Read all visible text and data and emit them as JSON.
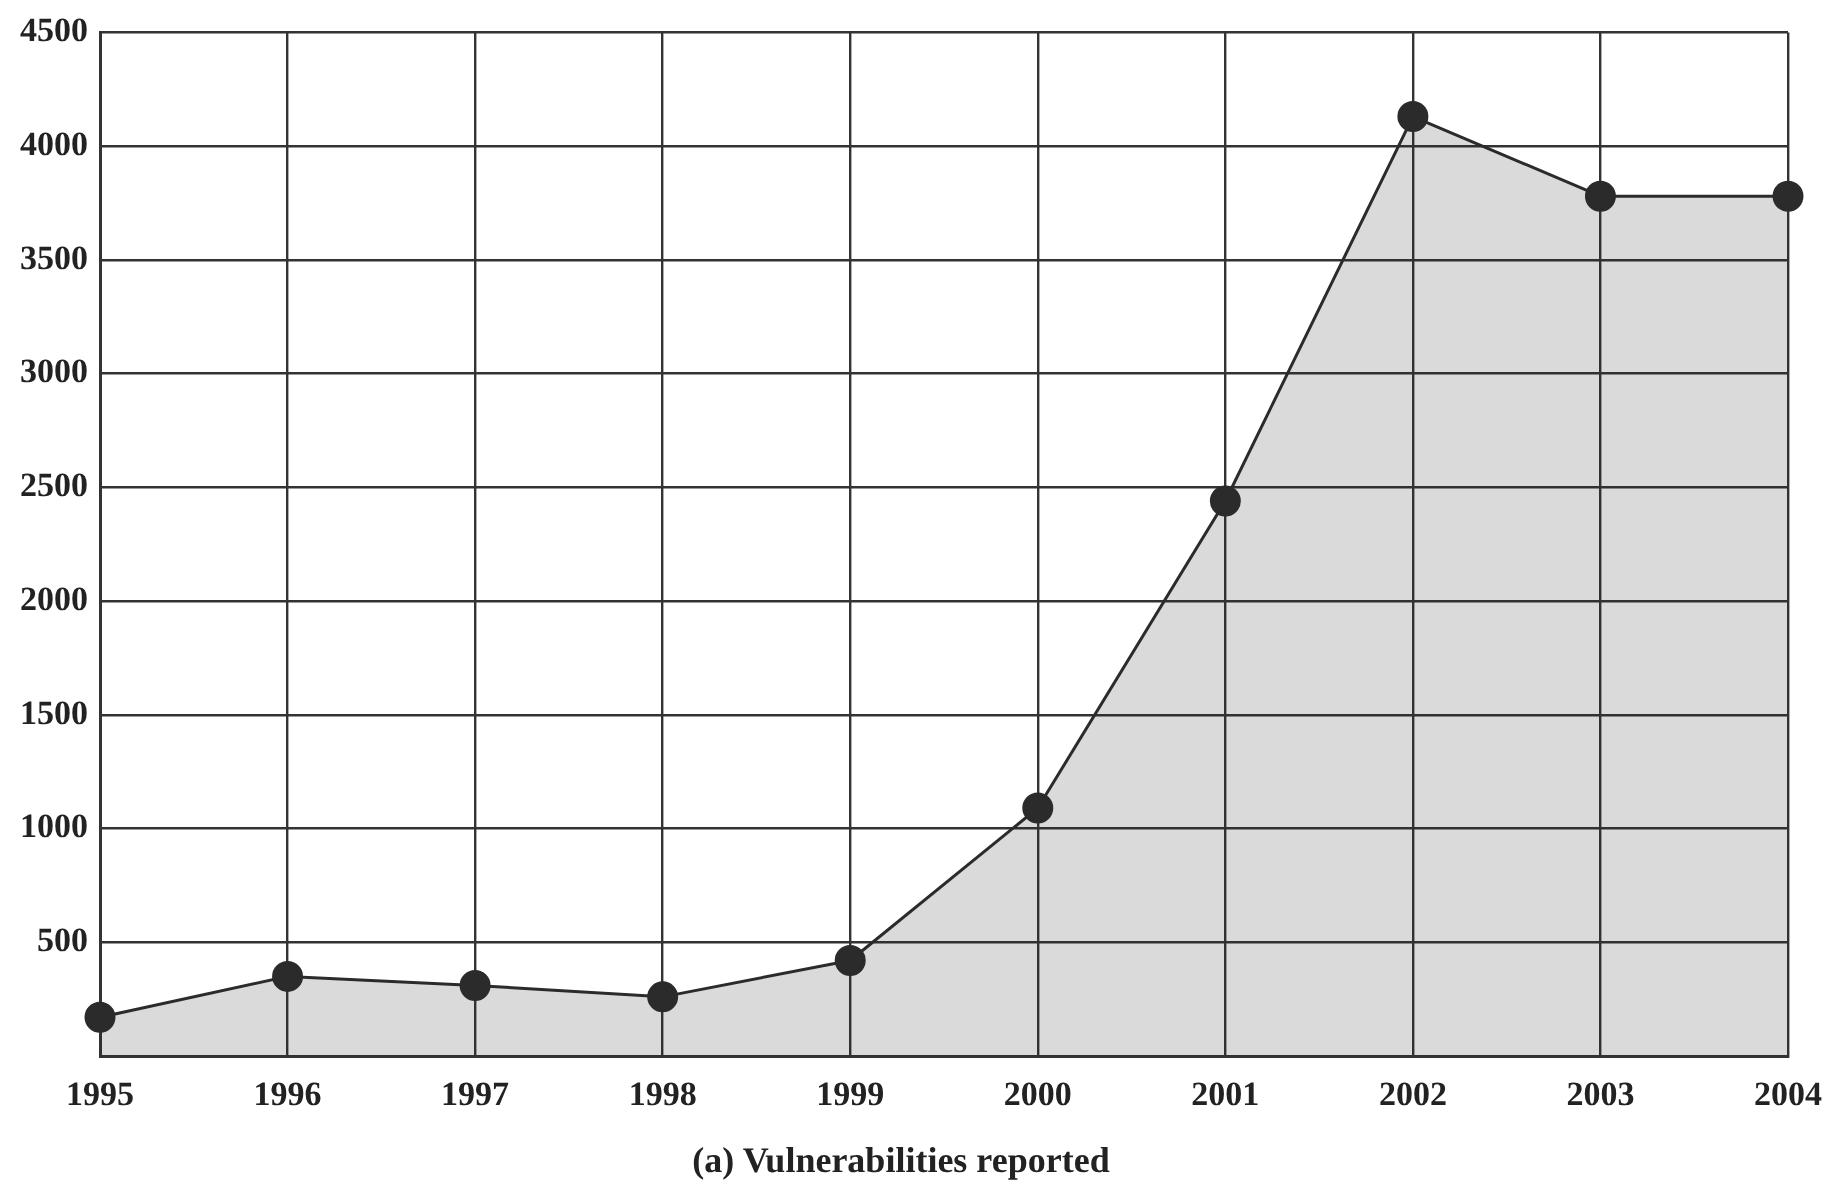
{
  "chart_data": {
    "type": "area",
    "title": "(a) Vulnerabilities reported",
    "categories": [
      "1995",
      "1996",
      "1997",
      "1998",
      "1999",
      "2000",
      "2001",
      "2002",
      "2003",
      "2004"
    ],
    "series": [
      {
        "color": "#2b2b2b",
        "values": [
          170,
          350,
          310,
          260,
          420,
          1090,
          2440,
          4130,
          3780,
          3780
        ]
      }
    ],
    "ylim": [
      0,
      4500
    ],
    "yticks": [
      {
        "value": 0,
        "label": null
      },
      500,
      1000,
      1500,
      2000,
      2500,
      3000,
      3500,
      4000,
      4500
    ],
    "grid": true,
    "legend": false,
    "marker": "circle",
    "line_style": "solid"
  }
}
